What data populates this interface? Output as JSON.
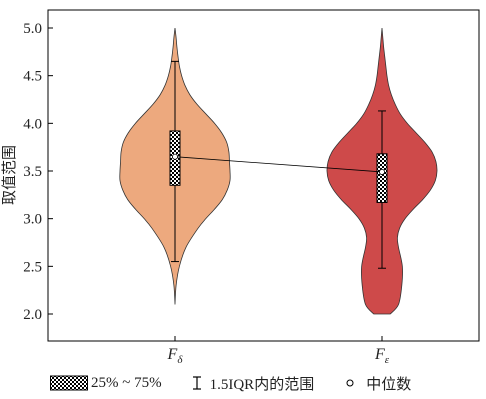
{
  "chart_data": {
    "type": "violin",
    "title": "",
    "xlabel": "",
    "ylabel": "取值范围",
    "ylim": [
      1.9,
      5.1
    ],
    "yticks": [
      "2.0",
      "2.5",
      "3.0",
      "3.5",
      "4.0",
      "4.5",
      "5.0"
    ],
    "grid": false,
    "categories": [
      {
        "main": "F",
        "sub": "δ"
      },
      {
        "main": "F",
        "sub": "ε"
      }
    ],
    "series": [
      {
        "color": "#eda97e",
        "min": 2.1,
        "max": 5.0,
        "whisker_low": 2.55,
        "q1": 3.35,
        "median": 3.65,
        "q3": 3.92,
        "whisker_high": 4.65,
        "density_y": [
          2.1,
          2.3,
          2.5,
          2.7,
          2.9,
          3.0,
          3.1,
          3.2,
          3.3,
          3.4,
          3.5,
          3.6,
          3.7,
          3.8,
          3.9,
          4.0,
          4.1,
          4.2,
          4.3,
          4.4,
          4.5,
          4.6,
          4.7,
          4.8,
          4.9,
          5.0
        ],
        "density_w": [
          0.0,
          0.02,
          0.08,
          0.2,
          0.42,
          0.56,
          0.72,
          0.86,
          0.95,
          1.0,
          1.0,
          0.99,
          0.98,
          0.94,
          0.85,
          0.72,
          0.56,
          0.4,
          0.27,
          0.18,
          0.12,
          0.08,
          0.055,
          0.035,
          0.02,
          0.0
        ]
      },
      {
        "color": "#ce4a4a",
        "min": 2.0,
        "max": 5.0,
        "whisker_low": 2.48,
        "q1": 3.17,
        "median": 3.49,
        "q3": 3.68,
        "whisker_high": 4.13,
        "density_y": [
          2.0,
          2.1,
          2.3,
          2.5,
          2.7,
          2.8,
          2.9,
          3.0,
          3.1,
          3.2,
          3.3,
          3.4,
          3.5,
          3.6,
          3.7,
          3.8,
          3.9,
          4.0,
          4.1,
          4.2,
          4.3,
          4.4,
          4.5,
          4.6,
          4.7,
          4.8,
          4.9,
          5.0
        ],
        "density_w": [
          0.15,
          0.3,
          0.36,
          0.37,
          0.3,
          0.28,
          0.32,
          0.42,
          0.57,
          0.74,
          0.88,
          0.97,
          1.0,
          0.98,
          0.91,
          0.78,
          0.62,
          0.46,
          0.33,
          0.24,
          0.17,
          0.12,
          0.09,
          0.07,
          0.05,
          0.03,
          0.015,
          0.0
        ]
      }
    ],
    "median_line": true,
    "legend": {
      "iqr_label": "25% ~ 75%",
      "whisker_label": "1.5IQR内的范围",
      "median_label": "中位数"
    }
  }
}
